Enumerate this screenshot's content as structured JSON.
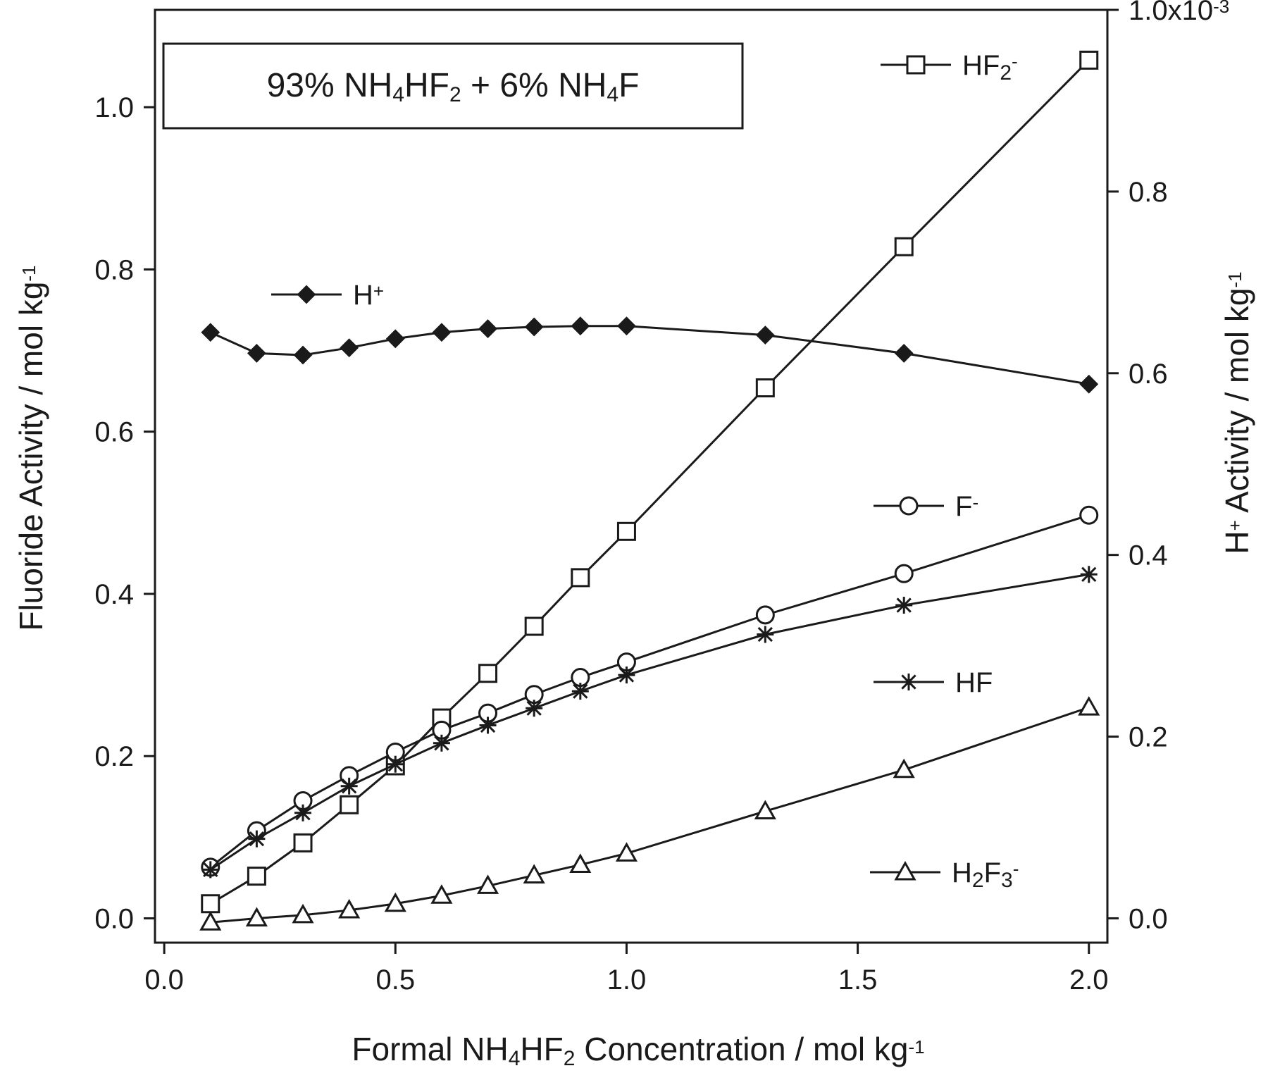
{
  "chart_data": {
    "type": "line",
    "title": "93% NH4HF2 + 6% NH4F",
    "xlabel": "Formal NH4HF2 Concentration / mol kg-1",
    "ylabel_left": "Fluoride Activity / mol kg-1",
    "ylabel_right": "H+ Activity / mol kg-1",
    "xlim": [
      -0.02,
      2.04
    ],
    "ylim_left": [
      -0.03,
      1.12
    ],
    "ylim_right": [
      -2.68e-05,
      0.001
    ],
    "x_ticks": [
      "0.0",
      "0.5",
      "1.0",
      "1.5",
      "2.0"
    ],
    "y_left_ticks": [
      "0.0",
      "0.2",
      "0.4",
      "0.6",
      "0.8",
      "1.0"
    ],
    "y_right_ticks": [
      "0.0",
      "0.2",
      "0.4",
      "0.6",
      "0.8",
      "1.0x10-3"
    ],
    "grid": false,
    "legend_position": "inside, right side next to each series",
    "series": [
      {
        "name": "HF2-",
        "marker": "square",
        "axis": "left",
        "x": [
          0.1,
          0.2,
          0.3,
          0.4,
          0.5,
          0.6,
          0.7,
          0.8,
          0.9,
          1.0,
          1.3,
          1.6,
          2.0
        ],
        "y": [
          0.018,
          0.052,
          0.093,
          0.14,
          0.188,
          0.247,
          0.302,
          0.36,
          0.42,
          0.477,
          0.654,
          0.828,
          1.058
        ]
      },
      {
        "name": "F-",
        "marker": "circle",
        "axis": "left",
        "x": [
          0.1,
          0.2,
          0.3,
          0.4,
          0.5,
          0.6,
          0.7,
          0.8,
          0.9,
          1.0,
          1.3,
          1.6,
          2.0
        ],
        "y": [
          0.063,
          0.108,
          0.145,
          0.176,
          0.205,
          0.232,
          0.253,
          0.276,
          0.297,
          0.316,
          0.374,
          0.425,
          0.497
        ]
      },
      {
        "name": "HF",
        "marker": "asterisk",
        "axis": "left",
        "x": [
          0.1,
          0.2,
          0.3,
          0.4,
          0.5,
          0.6,
          0.7,
          0.8,
          0.9,
          1.0,
          1.3,
          1.6,
          2.0
        ],
        "y": [
          0.06,
          0.098,
          0.13,
          0.163,
          0.19,
          0.216,
          0.238,
          0.259,
          0.28,
          0.3,
          0.35,
          0.386,
          0.424
        ]
      },
      {
        "name": "H2F3-",
        "marker": "triangle",
        "axis": "left",
        "x": [
          0.1,
          0.2,
          0.3,
          0.4,
          0.5,
          0.6,
          0.7,
          0.8,
          0.9,
          1.0,
          1.3,
          1.6,
          2.0
        ],
        "y": [
          -0.005,
          0.0,
          0.004,
          0.01,
          0.018,
          0.028,
          0.04,
          0.053,
          0.066,
          0.08,
          0.132,
          0.183,
          0.26
        ]
      },
      {
        "name": "H+",
        "marker": "filled-diamond",
        "axis": "right",
        "x": [
          0.1,
          0.2,
          0.3,
          0.4,
          0.5,
          0.6,
          0.7,
          0.8,
          0.9,
          1.0,
          1.3,
          1.6,
          2.0
        ],
        "y": [
          0.000645,
          0.000622,
          0.00062,
          0.000628,
          0.000638,
          0.000645,
          0.000649,
          0.000651,
          0.000652,
          0.000652,
          0.000642,
          0.000622,
          0.000588
        ]
      }
    ]
  }
}
